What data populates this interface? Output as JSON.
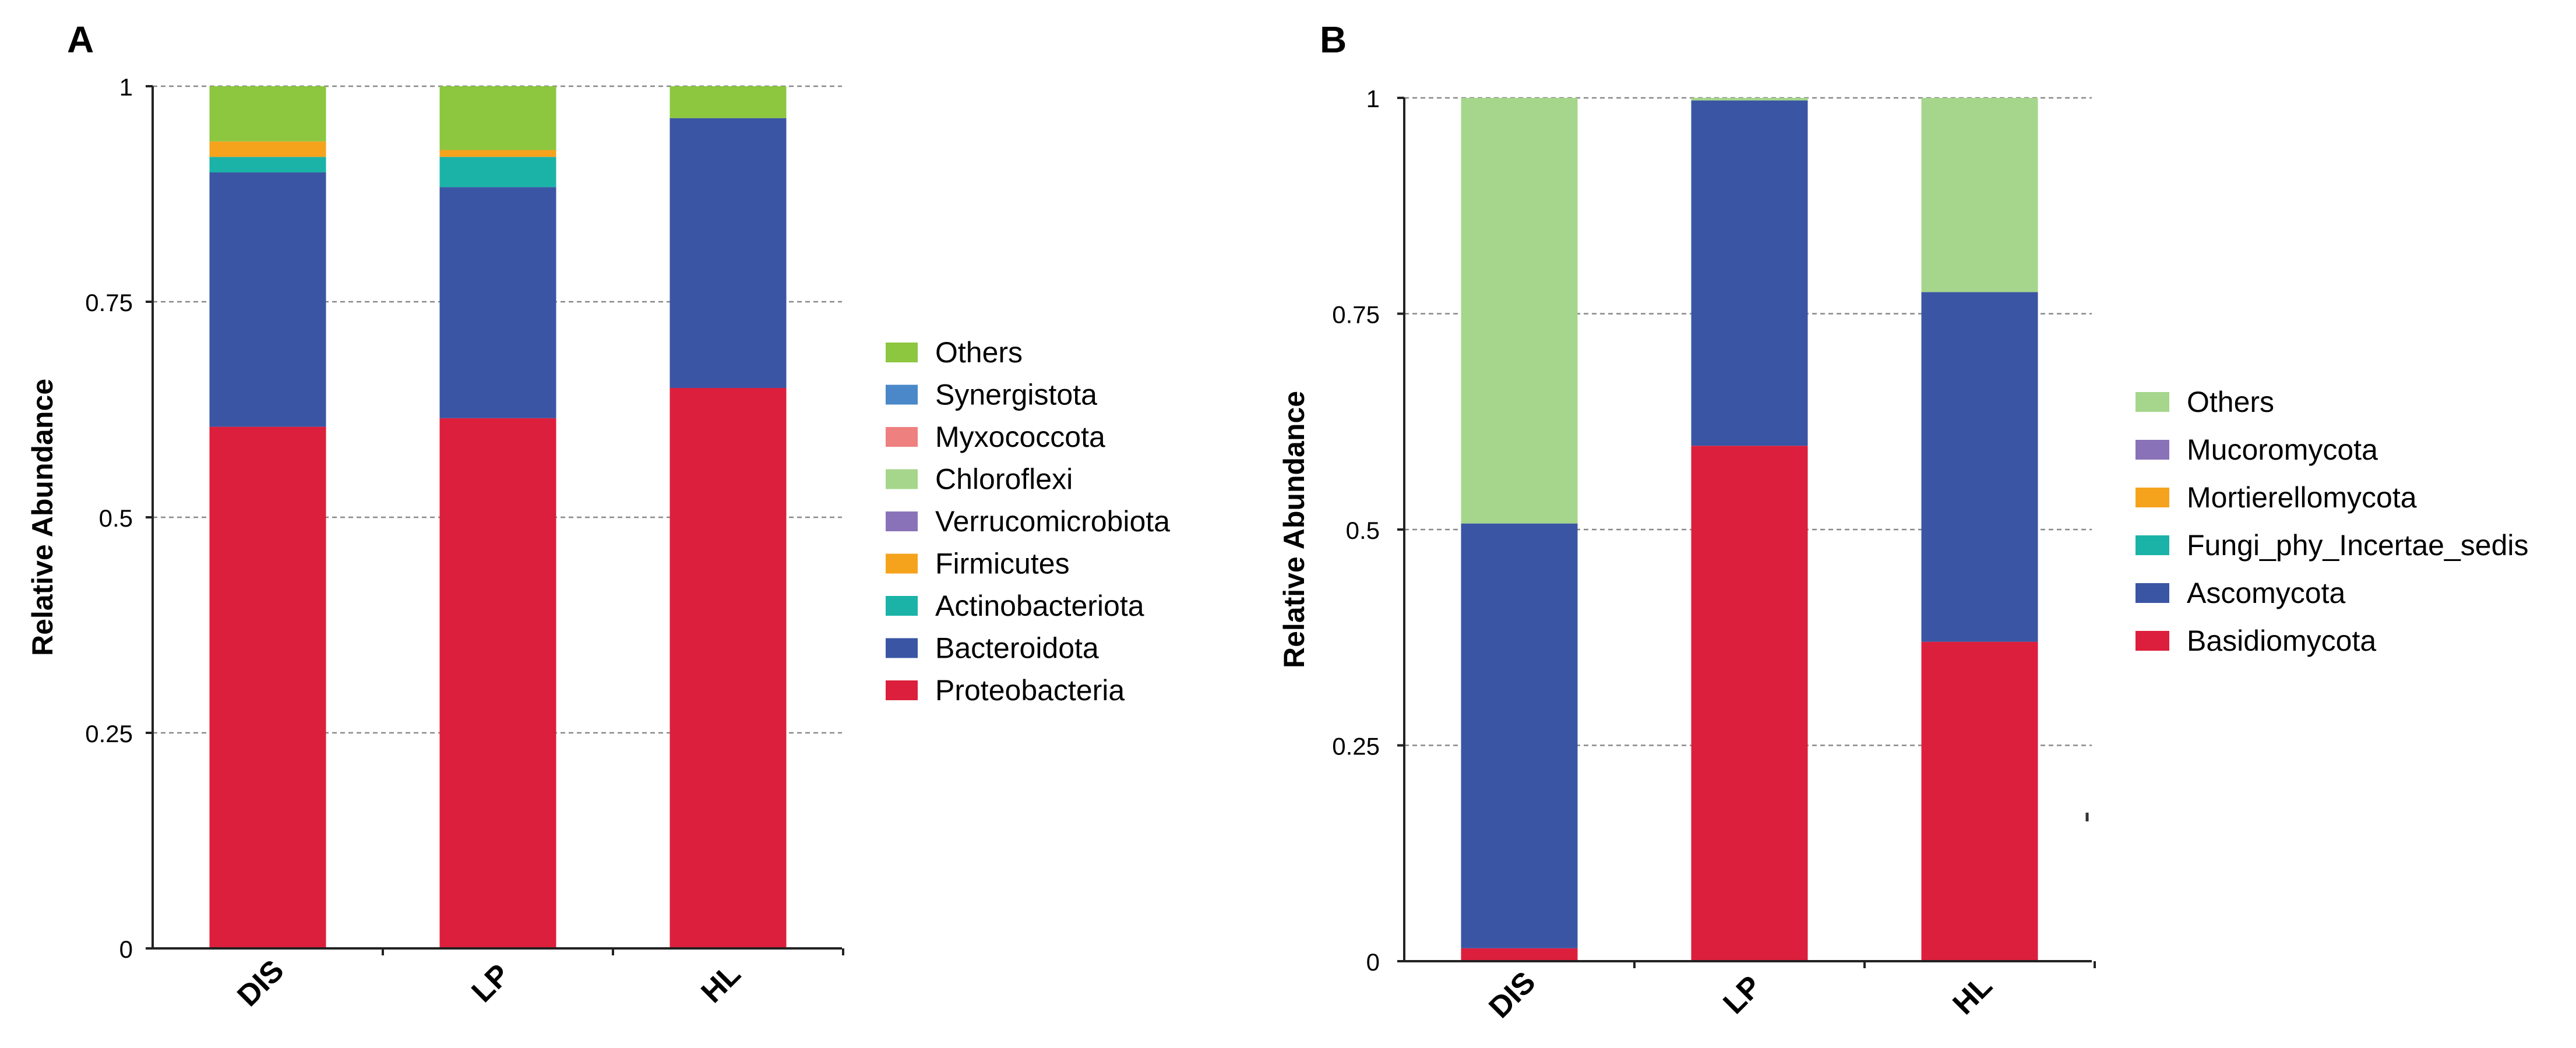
{
  "panels": [
    {
      "label": "A",
      "chart_data": {
        "type": "bar",
        "stacked": true,
        "categories": [
          "DIS",
          "LP",
          "HL"
        ],
        "ylabel": "Relative Abundance",
        "xlabel": "",
        "ylim": [
          0,
          1
        ],
        "yticks": [
          0,
          0.25,
          0.5,
          0.75,
          1
        ],
        "ytick_labels": [
          "0",
          "0.25",
          "0.5",
          "0.75",
          "1"
        ],
        "grid": "horizontal dashed",
        "legend_position": "right",
        "series": [
          {
            "name": "Proteobacteria",
            "color": "#dc1f3c",
            "values": [
              0.605,
              0.615,
              0.65
            ]
          },
          {
            "name": "Bacteroidota",
            "color": "#3a55a4",
            "values": [
              0.295,
              0.268,
              0.313
            ]
          },
          {
            "name": "Actinobacteriota",
            "color": "#1bb3a8",
            "values": [
              0.018,
              0.035,
              0.0
            ]
          },
          {
            "name": "Firmicutes",
            "color": "#f5a31d",
            "values": [
              0.018,
              0.008,
              0.0
            ]
          },
          {
            "name": "Verrucomicrobiota",
            "color": "#8a72b8",
            "values": [
              0.0,
              0.0,
              0.0
            ]
          },
          {
            "name": "Chloroflexi",
            "color": "#a5d68c",
            "values": [
              0.0,
              0.0,
              0.0
            ]
          },
          {
            "name": "Myxococcota",
            "color": "#ee8080",
            "values": [
              0.0,
              0.0,
              0.0
            ]
          },
          {
            "name": "Synergistota",
            "color": "#4a88c9",
            "values": [
              0.0,
              0.0,
              0.0
            ]
          },
          {
            "name": "Others",
            "color": "#8dc63f",
            "values": [
              0.064,
              0.074,
              0.037
            ]
          }
        ]
      }
    },
    {
      "label": "B",
      "chart_data": {
        "type": "bar",
        "stacked": true,
        "categories": [
          "DIS",
          "LP",
          "HL"
        ],
        "ylabel": "Relative Abundance",
        "xlabel": "",
        "ylim": [
          0,
          1
        ],
        "yticks": [
          0,
          0.25,
          0.5,
          0.75,
          1
        ],
        "ytick_labels": [
          "0",
          "0.25",
          "0.5",
          "0.75",
          "1"
        ],
        "grid": "horizontal dashed",
        "legend_position": "right",
        "series": [
          {
            "name": "Basidiomycota",
            "color": "#dc1f3c",
            "values": [
              0.015,
              0.597,
              0.37
            ]
          },
          {
            "name": "Ascomycota",
            "color": "#3a55a4",
            "values": [
              0.492,
              0.4,
              0.405
            ]
          },
          {
            "name": "Fungi_phy_Incertae_sedis",
            "color": "#1bb3a8",
            "values": [
              0.0,
              0.0,
              0.0
            ]
          },
          {
            "name": "Mortierellomycota",
            "color": "#f5a31d",
            "values": [
              0.0,
              0.0,
              0.0
            ]
          },
          {
            "name": "Mucoromycota",
            "color": "#8a72b8",
            "values": [
              0.0,
              0.0,
              0.0
            ]
          },
          {
            "name": "Others",
            "color": "#a5d68c",
            "values": [
              0.493,
              0.003,
              0.225
            ]
          }
        ]
      }
    }
  ]
}
